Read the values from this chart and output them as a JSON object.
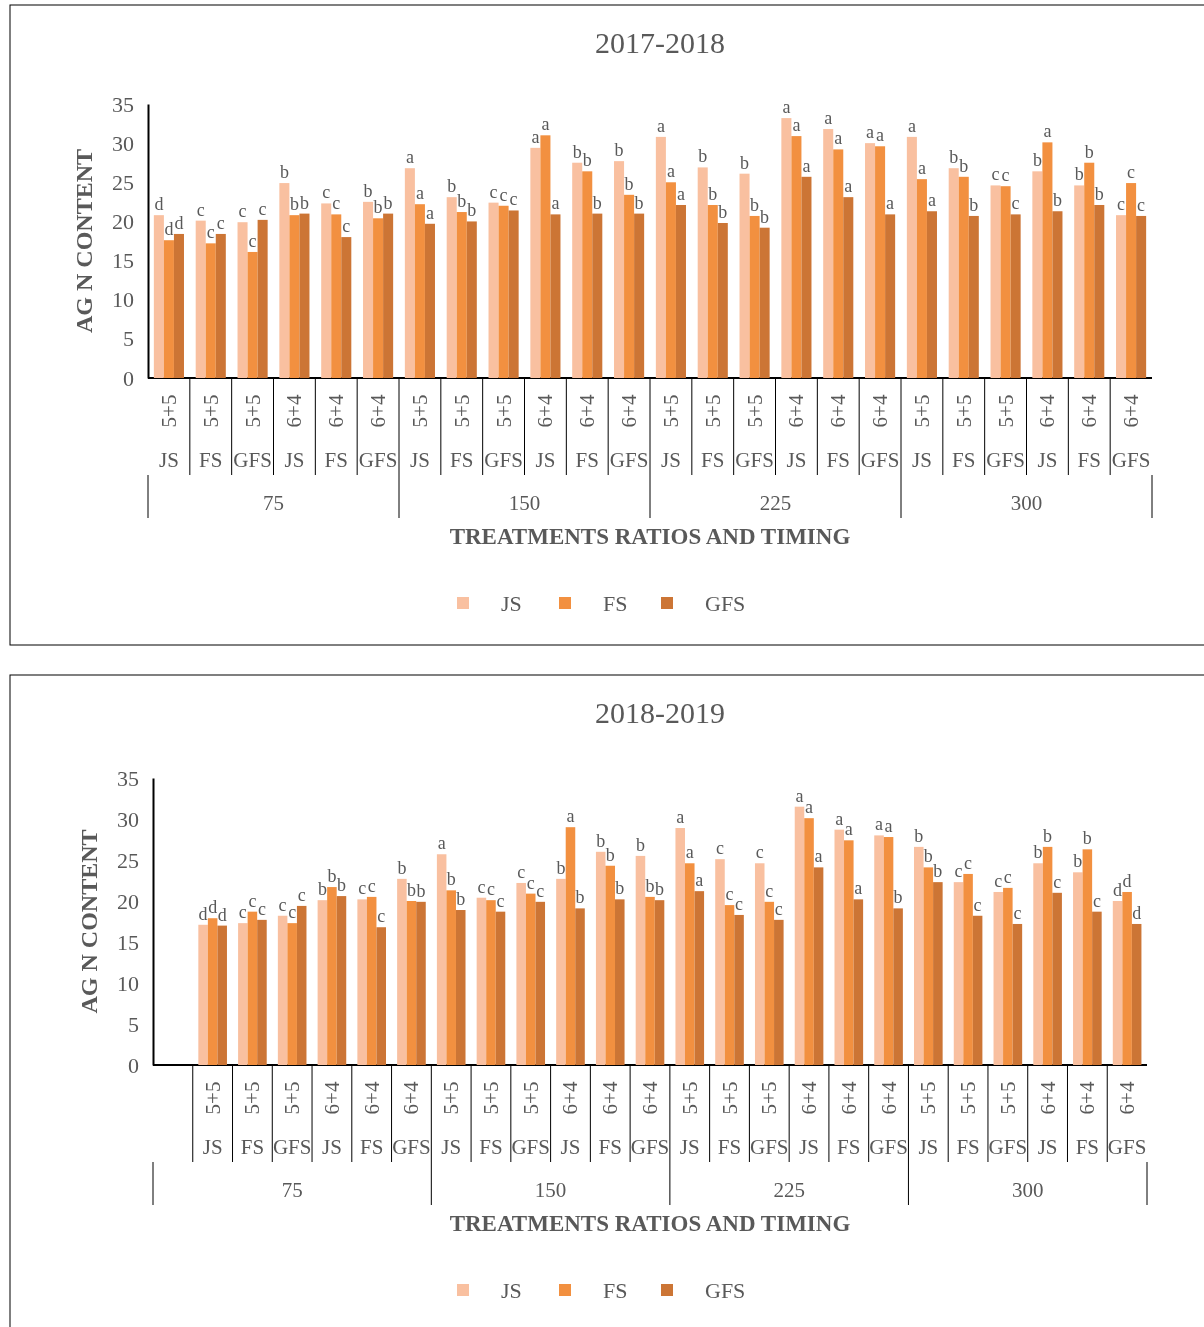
{
  "chart_data": [
    {
      "type": "bar",
      "title": "2017-2018",
      "xlabel": "TREATMENTS RATIOS AND TIMING",
      "ylabel": "AG N CONTENT",
      "ylim": [
        0,
        35
      ],
      "yticks": [
        0,
        5,
        10,
        15,
        20,
        25,
        30,
        35
      ],
      "legend": "bottom",
      "categories": [
        "5+5\nJS",
        "5+5\nFS",
        "5+5\nGFS",
        "6+4\nJS",
        "6+4\nFS",
        "6+4\nGFS",
        "5+5\nJS",
        "5+5\nFS",
        "5+5\nGFS",
        "6+4\nJS",
        "6+4\nFS",
        "6+4\nGFS",
        "5+5\nJS",
        "5+5\nFS",
        "5+5\nGFS",
        "6+4\nJS",
        "6+4\nFS",
        "6+4\nGFS",
        "5+5\nJS",
        "5+5\nFS",
        "5+5\nGFS",
        "6+4\nJS",
        "6+4\nFS",
        "6+4\nGFS"
      ],
      "annotations": [
        "75",
        "150",
        "225",
        "300"
      ],
      "series": [
        {
          "name": "JS",
          "color": "#f9c0a0",
          "values": [
            20.8,
            20.1,
            19.9,
            24.9,
            22.3,
            22.5,
            26.8,
            23.1,
            22.4,
            29.4,
            27.5,
            27.7,
            30.8,
            26.9,
            26.1,
            33.2,
            31.8,
            30.0,
            30.8,
            26.8,
            24.6,
            26.4,
            24.6,
            20.8
          ],
          "value_labels": [
            "d",
            "c",
            "c",
            "b",
            "c",
            "b",
            "a",
            "b",
            "c",
            "a",
            "b",
            "b",
            "a",
            "b",
            "b",
            "a",
            "a",
            "a",
            "a",
            "b",
            "c",
            "b",
            "b",
            "c"
          ]
        },
        {
          "name": "FS",
          "color": "#f29040",
          "values": [
            17.6,
            17.2,
            16.1,
            20.8,
            20.9,
            20.4,
            22.2,
            21.2,
            22.0,
            31.0,
            26.4,
            23.4,
            25.0,
            22.1,
            20.7,
            30.9,
            29.2,
            29.6,
            25.4,
            25.7,
            24.5,
            30.1,
            27.5,
            24.9
          ],
          "value_labels": [
            "d",
            "c",
            "c",
            "b",
            "c",
            "b",
            "a",
            "b",
            "c",
            "a",
            "b",
            "b",
            "a",
            "b",
            "b",
            "a",
            "a",
            "a",
            "a",
            "b",
            "c",
            "a",
            "b",
            "c"
          ]
        },
        {
          "name": "GFS",
          "color": "#cc7535",
          "values": [
            18.4,
            18.4,
            20.2,
            21.0,
            18.0,
            21.0,
            19.7,
            20.0,
            21.4,
            20.9,
            21.0,
            21.0,
            22.1,
            19.8,
            19.2,
            25.7,
            23.1,
            20.9,
            21.3,
            20.7,
            20.9,
            21.3,
            22.1,
            20.7
          ],
          "value_labels": [
            "d",
            "c",
            "c",
            "b",
            "c",
            "b",
            "a",
            "b",
            "c",
            "a",
            "b",
            "b",
            "a",
            "b",
            "b",
            "a",
            "a",
            "a",
            "a",
            "b",
            "c",
            "b",
            "b",
            "c"
          ]
        }
      ]
    },
    {
      "type": "bar",
      "title": "2018-2019",
      "xlabel": "TREATMENTS RATIOS AND TIMING",
      "ylabel": "AG N CONTENT",
      "ylim": [
        0,
        35
      ],
      "yticks": [
        0,
        5,
        10,
        15,
        20,
        25,
        30,
        35
      ],
      "legend": "bottom",
      "categories": [
        null,
        "5+5\nJS",
        "5+5\nFS",
        "5+5\nGFS",
        "6+4\nJS",
        "6+4\nFS",
        "6+4\nGFS",
        "5+5\nJS",
        "5+5\nFS",
        "5+5\nGFS",
        "6+4\nJS",
        "6+4\nFS",
        "6+4\nGFS",
        "5+5\nJS",
        "5+5\nFS",
        "5+5\nGFS",
        "6+4\nJS",
        "6+4\nFS",
        "6+4\nGFS",
        "5+5\nJS",
        "5+5\nFS",
        "5+5\nGFS",
        "6+4\nJS",
        "6+4\nFS",
        "6+4\nGFS"
      ],
      "annotations": [
        "75",
        "150",
        "225",
        "300"
      ],
      "series": [
        {
          "name": "JS",
          "color": "#f9c0a0",
          "values": [
            null,
            17.1,
            17.3,
            18.2,
            20.1,
            20.2,
            22.7,
            25.7,
            20.4,
            22.2,
            22.7,
            26.0,
            25.5,
            28.9,
            25.1,
            24.6,
            31.5,
            28.7,
            28.0,
            26.6,
            22.3,
            21.1,
            24.6,
            23.5,
            20.0
          ],
          "value_labels": [
            null,
            "d",
            "c",
            "c",
            "b",
            "c",
            "b",
            "a",
            "c",
            "c",
            "b",
            "b",
            "b",
            "a",
            "c",
            "c",
            "a",
            "a",
            "a",
            "b",
            "c",
            "c",
            "b",
            "b",
            "d"
          ]
        },
        {
          "name": "FS",
          "color": "#f29040",
          "values": [
            null,
            17.9,
            18.7,
            17.3,
            21.7,
            20.5,
            20.0,
            21.3,
            20.1,
            20.9,
            29.0,
            24.3,
            20.5,
            24.6,
            19.5,
            19.9,
            30.1,
            27.4,
            27.8,
            24.1,
            23.3,
            21.6,
            26.6,
            26.3,
            21.1
          ],
          "value_labels": [
            null,
            "d",
            "c",
            "c",
            "b",
            "c",
            "b",
            "b",
            "c",
            "c",
            "a",
            "b",
            "b",
            "a",
            "c",
            "c",
            "a",
            "a",
            "a",
            "b",
            "c",
            "c",
            "b",
            "b",
            "d"
          ]
        },
        {
          "name": "GFS",
          "color": "#cc7535",
          "values": [
            null,
            17.0,
            17.7,
            19.4,
            20.6,
            16.8,
            19.9,
            18.9,
            18.7,
            19.9,
            19.1,
            20.2,
            20.1,
            21.2,
            18.3,
            17.7,
            24.1,
            20.2,
            19.1,
            22.3,
            18.2,
            17.2,
            21.0,
            18.7,
            17.2
          ],
          "value_labels": [
            null,
            "d",
            "c",
            "c",
            "b",
            "c",
            "b",
            "b",
            "c",
            "c",
            "b",
            "b",
            "b",
            "a",
            "c",
            "c",
            "a",
            "a",
            "b",
            "b",
            "c",
            "c",
            "c",
            "c",
            "d"
          ]
        }
      ]
    }
  ]
}
